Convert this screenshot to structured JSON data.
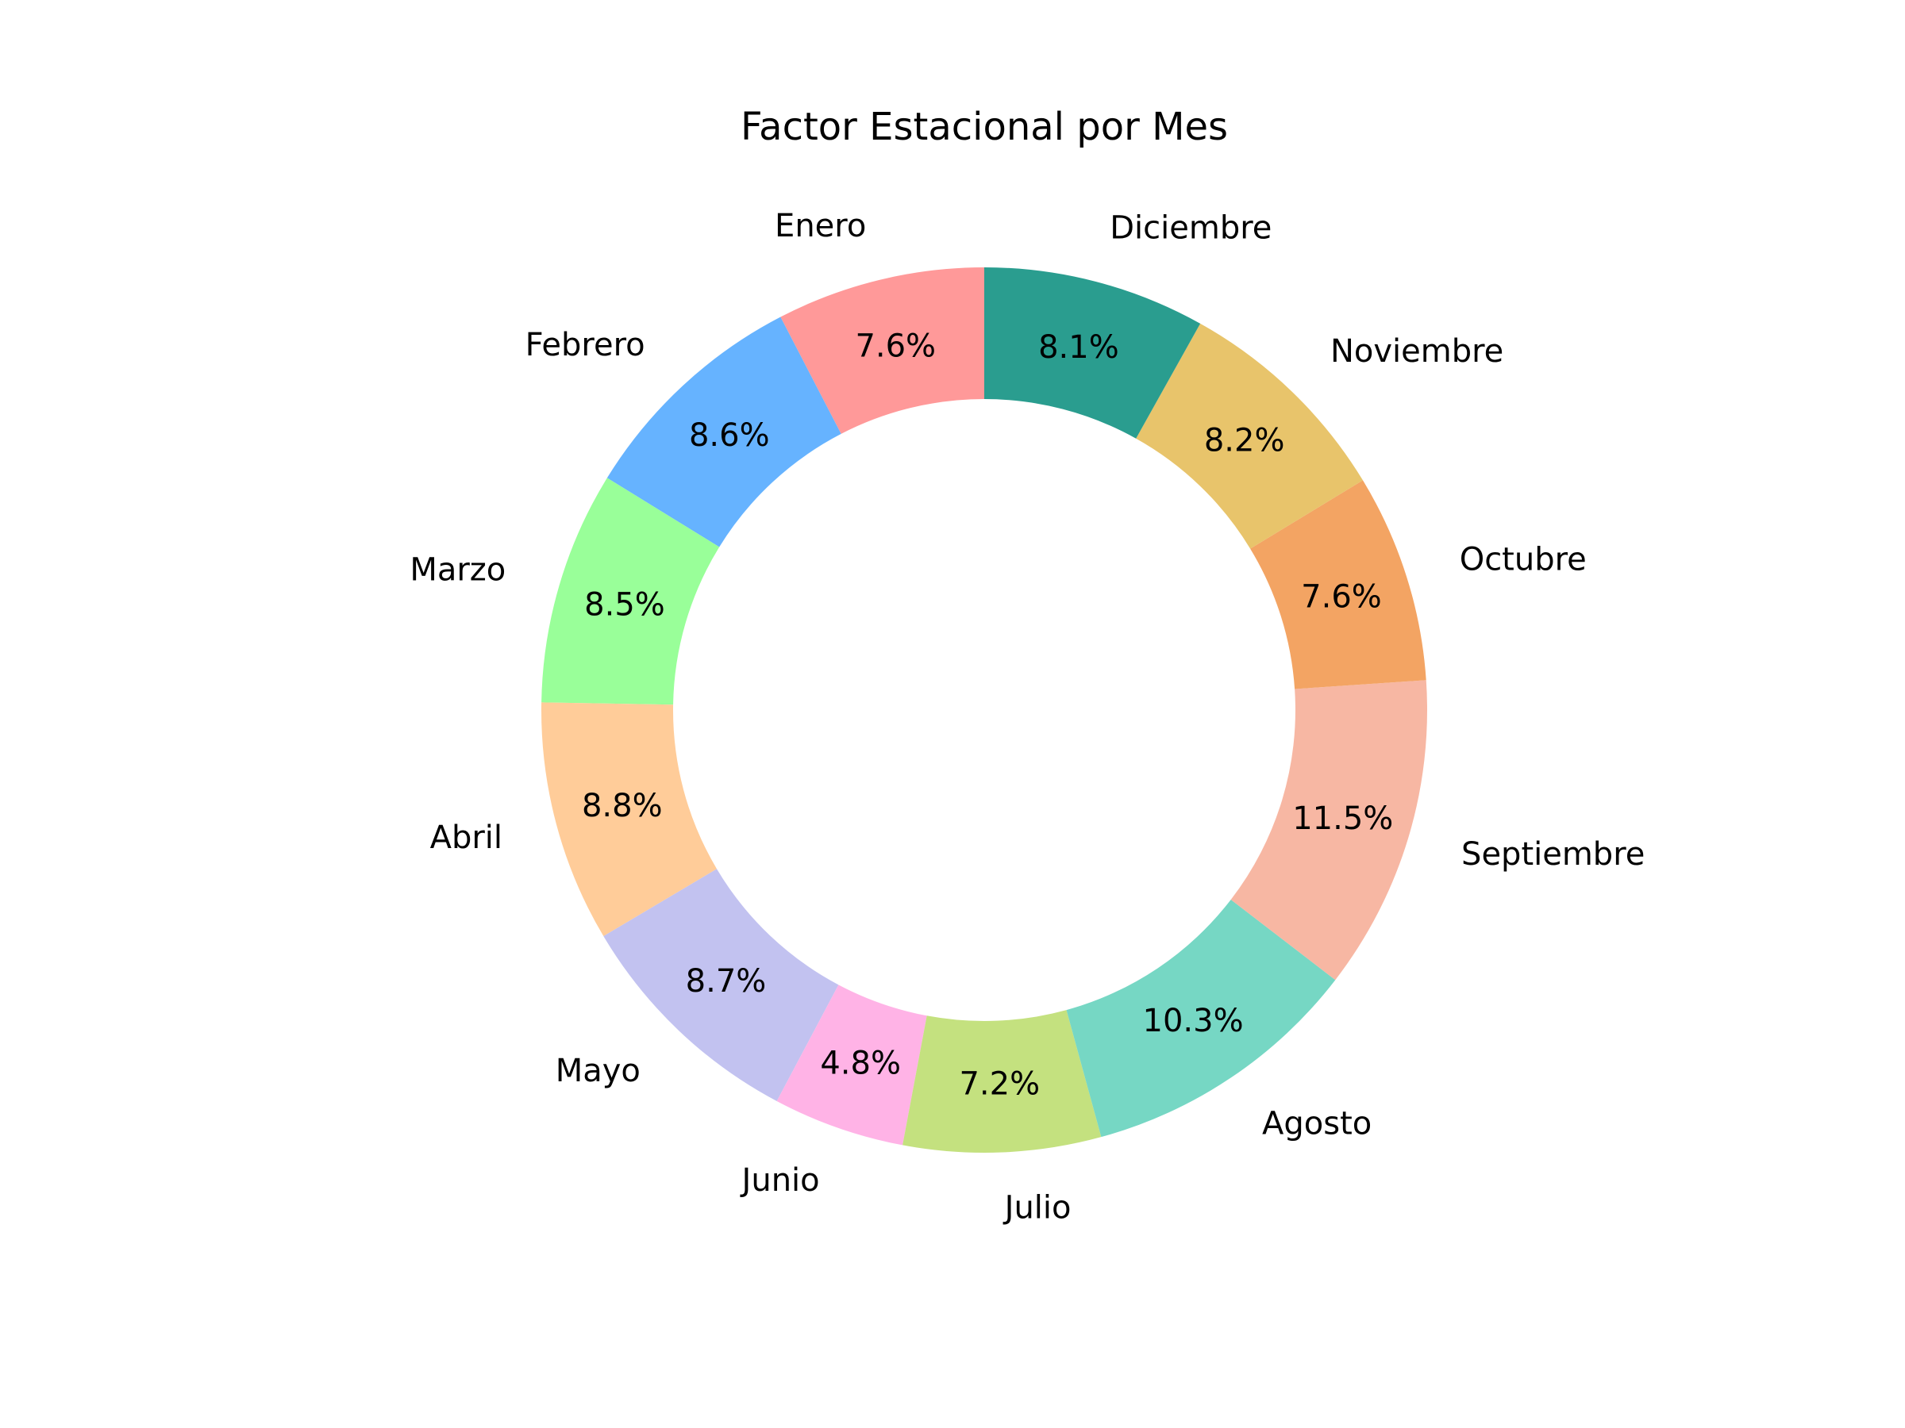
{
  "chart_data": {
    "type": "pie",
    "style": "donut",
    "title": "Factor Estacional por Mes",
    "start_angle_deg": 90,
    "direction": "counterclockwise",
    "slices": [
      {
        "label": "Enero",
        "value": 7.6,
        "pct_label": "7.6%",
        "color": "#ff9999"
      },
      {
        "label": "Febrero",
        "value": 8.6,
        "pct_label": "8.6%",
        "color": "#66b3ff"
      },
      {
        "label": "Marzo",
        "value": 8.5,
        "pct_label": "8.5%",
        "color": "#99ff99"
      },
      {
        "label": "Abril",
        "value": 8.8,
        "pct_label": "8.8%",
        "color": "#ffcc99"
      },
      {
        "label": "Mayo",
        "value": 8.7,
        "pct_label": "8.7%",
        "color": "#c2c2f0"
      },
      {
        "label": "Junio",
        "value": 4.8,
        "pct_label": "4.8%",
        "color": "#ffb3e6"
      },
      {
        "label": "Julio",
        "value": 7.2,
        "pct_label": "7.2%",
        "color": "#c4e17f"
      },
      {
        "label": "Agosto",
        "value": 10.3,
        "pct_label": "10.3%",
        "color": "#76d7c4"
      },
      {
        "label": "Septiembre",
        "value": 11.5,
        "pct_label": "11.5%",
        "color": "#f7b7a3"
      },
      {
        "label": "Octubre",
        "value": 7.6,
        "pct_label": "7.6%",
        "color": "#f3a463"
      },
      {
        "label": "Noviembre",
        "value": 8.2,
        "pct_label": "8.2%",
        "color": "#e8c46b"
      },
      {
        "label": "Diciembre",
        "value": 8.1,
        "pct_label": "8.1%",
        "color": "#2a9d8f"
      }
    ]
  }
}
